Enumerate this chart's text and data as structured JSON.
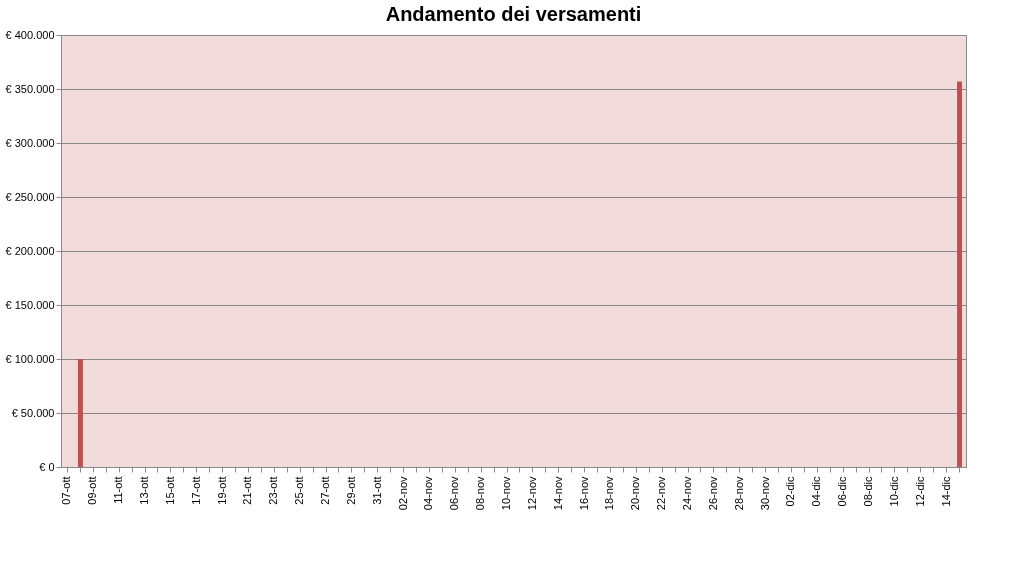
{
  "chart_data": {
    "type": "bar",
    "title": "Andamento dei versamenti",
    "categories": [
      "07-ott",
      null,
      "09-ott",
      null,
      "11-ott",
      null,
      "13-ott",
      null,
      "15-ott",
      null,
      "17-ott",
      null,
      "19-ott",
      null,
      "21-ott",
      null,
      "23-ott",
      null,
      "25-ott",
      null,
      "27-ott",
      null,
      "29-ott",
      null,
      "31-ott",
      null,
      "02-nov",
      null,
      "04-nov",
      null,
      "06-nov",
      null,
      "08-nov",
      null,
      "10-nov",
      null,
      "12-nov",
      null,
      "14-nov",
      null,
      "16-nov",
      null,
      "18-nov",
      null,
      "20-nov",
      null,
      "22-nov",
      null,
      "24-nov",
      null,
      "26-nov",
      null,
      "28-nov",
      null,
      "30-nov",
      null,
      "02-dic",
      null,
      "04-dic",
      null,
      "06-dic",
      null,
      "08-dic",
      null,
      "10-dic",
      null,
      "12-dic",
      null,
      "14-dic",
      null
    ],
    "values": [
      null,
      100000,
      null,
      null,
      null,
      null,
      null,
      null,
      null,
      null,
      null,
      null,
      null,
      null,
      null,
      null,
      null,
      null,
      null,
      null,
      null,
      null,
      null,
      null,
      null,
      null,
      null,
      null,
      null,
      null,
      null,
      null,
      null,
      null,
      null,
      null,
      null,
      null,
      null,
      null,
      null,
      null,
      null,
      null,
      null,
      null,
      null,
      null,
      null,
      null,
      null,
      null,
      null,
      null,
      null,
      null,
      null,
      null,
      null,
      null,
      null,
      null,
      null,
      null,
      null,
      null,
      null,
      null,
      null,
      357000
    ],
    "color": "#c0504d",
    "ylim": [
      0,
      400000
    ],
    "yticks": [
      {
        "value": 0,
        "label": "€ 0"
      },
      {
        "value": 50000,
        "label": "€ 50.000"
      },
      {
        "value": 100000,
        "label": "€ 100.000"
      },
      {
        "value": 150000,
        "label": "€ 150.000"
      },
      {
        "value": 200000,
        "label": "€ 200.000"
      },
      {
        "value": 250000,
        "label": "€ 250.000"
      },
      {
        "value": 300000,
        "label": "€ 300.000"
      },
      {
        "value": 350000,
        "label": "€ 350.000"
      },
      {
        "value": 400000,
        "label": "€ 400.000"
      }
    ],
    "grid": "y"
  }
}
